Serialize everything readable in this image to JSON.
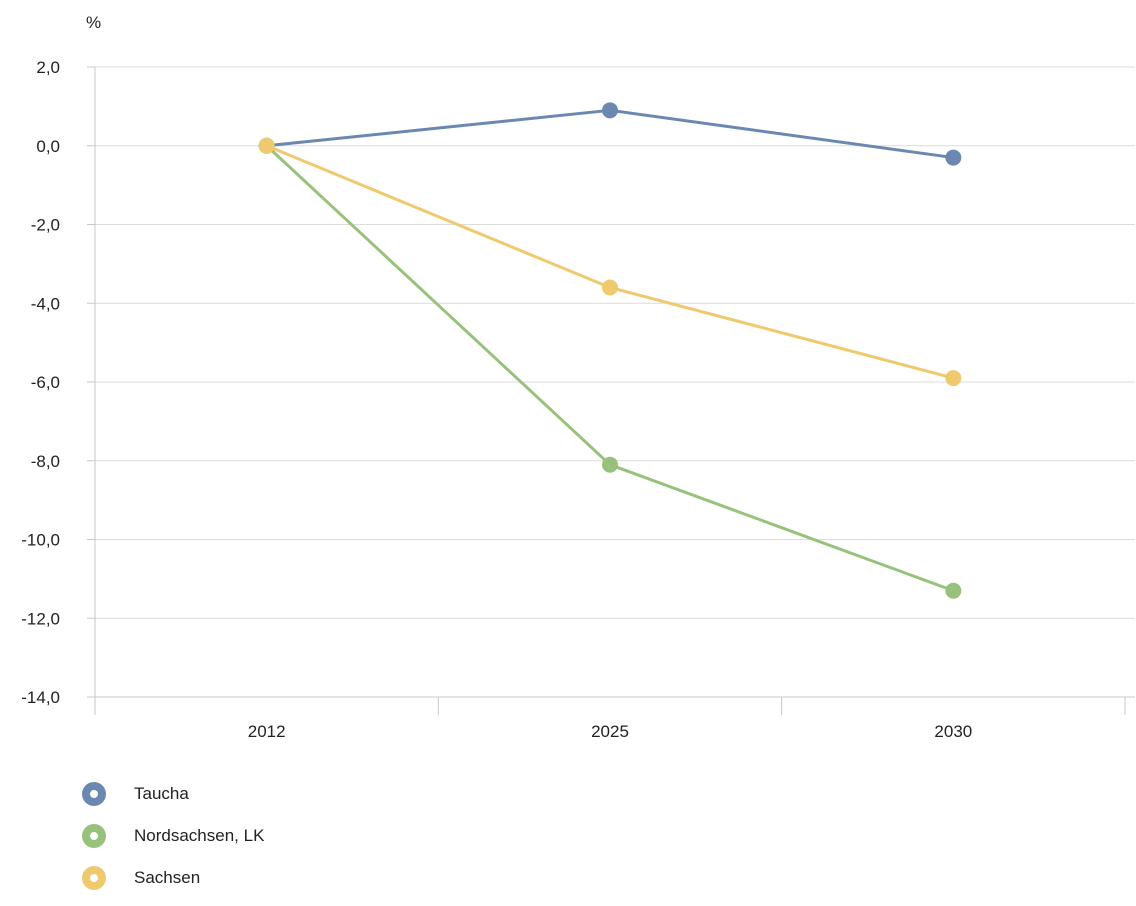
{
  "chart_data": {
    "type": "line",
    "unit_label": "%",
    "categories": [
      "2012",
      "2025",
      "2030"
    ],
    "ylim": [
      -14,
      2
    ],
    "yticks": [
      2,
      0,
      -2,
      -4,
      -6,
      -8,
      -10,
      -12,
      -14
    ],
    "ytick_labels": [
      "2,0",
      "0,0",
      "-2,0",
      "-4,0",
      "-6,0",
      "-8,0",
      "-10,0",
      "-12,0",
      "-14,0"
    ],
    "grid": true,
    "legend_position": "bottom-left",
    "series": [
      {
        "name": "Taucha",
        "color": "#6b88b0",
        "values": [
          0.0,
          0.9,
          -0.3
        ]
      },
      {
        "name": "Nordsachsen, LK",
        "color": "#98c27c",
        "values": [
          0.0,
          -8.1,
          -11.3
        ]
      },
      {
        "name": "Sachsen",
        "color": "#efc96d",
        "values": [
          0.0,
          -3.6,
          -5.9
        ]
      }
    ]
  }
}
